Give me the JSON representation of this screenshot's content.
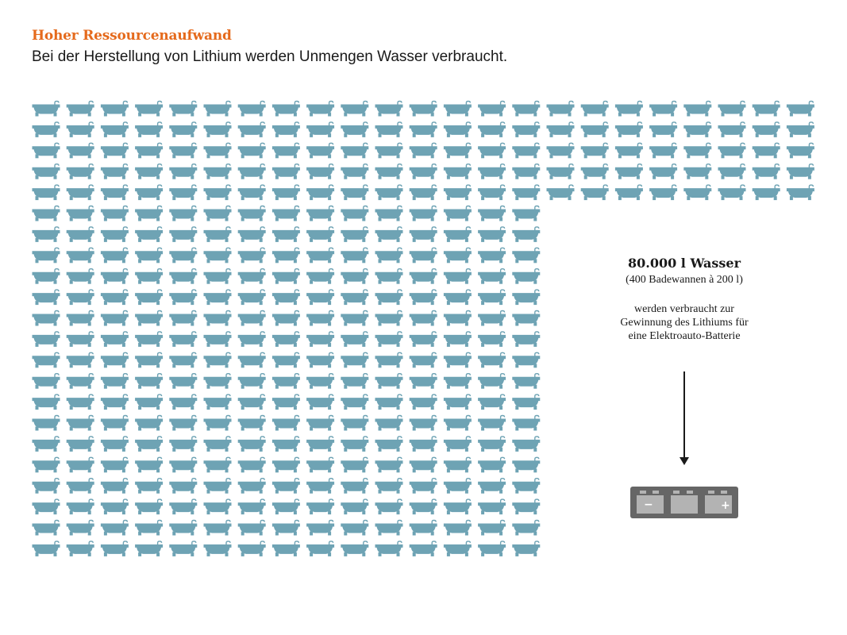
{
  "header": {
    "title": "Hoher Ressourcenaufwand",
    "subtitle": "Bei der Herstellung von Lithium werden Unmengen Wasser verbraucht."
  },
  "info": {
    "amount": "80.000 l Wasser",
    "equivalent": "(400 Badewannen à 200 l)",
    "description_lines": [
      "werden verbraucht zur",
      "Gewinnung des Lithiums für",
      "eine Elektroauto-Batterie"
    ]
  },
  "grid": {
    "total_icons": 400,
    "icon": "bathtub-icon",
    "color": "#6ea3b4"
  },
  "battery": {
    "icon": "battery-icon",
    "minus_label": "−",
    "plus_label": "+",
    "body_color": "#666666",
    "cell_color": "#b3b3b3"
  }
}
